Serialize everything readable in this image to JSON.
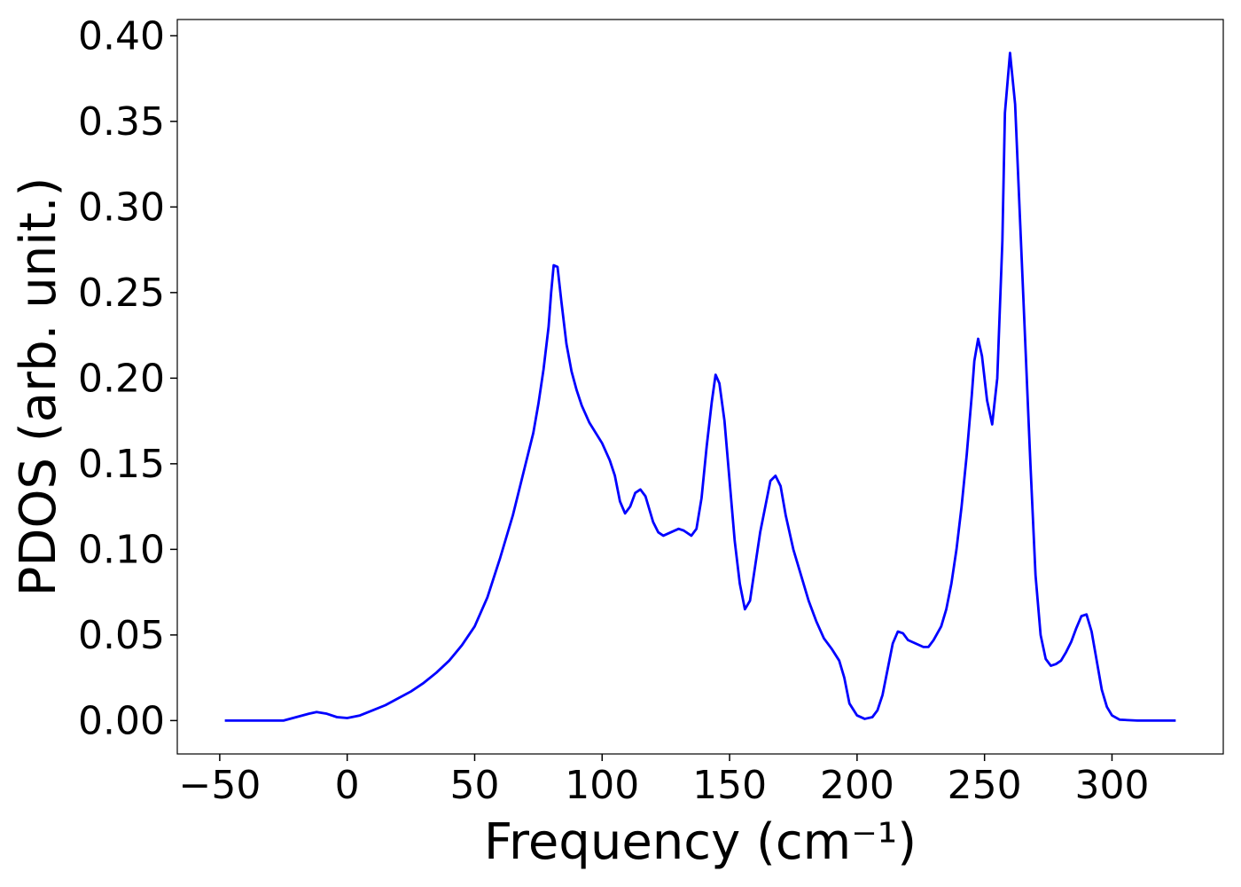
{
  "chart_data": {
    "type": "line",
    "xlabel": "Frequency (cm⁻¹)",
    "ylabel": "PDOS (arb. unit.)",
    "xlim": [
      -66.65,
      343.65
    ],
    "ylim": [
      -0.0195,
      0.4095
    ],
    "xticks": [
      {
        "value": -50,
        "label": "−50"
      },
      0,
      50,
      100,
      150,
      200,
      250,
      300
    ],
    "yticks": [
      {
        "value": 0,
        "label": "0.00"
      },
      {
        "value": 0.05,
        "label": "0.05"
      },
      {
        "value": 0.1,
        "label": "0.10"
      },
      {
        "value": 0.15,
        "label": "0.15"
      },
      {
        "value": 0.2,
        "label": "0.20"
      },
      {
        "value": 0.25,
        "label": "0.25"
      },
      {
        "value": 0.3,
        "label": "0.30"
      },
      {
        "value": 0.35,
        "label": "0.35"
      },
      {
        "value": 0.4,
        "label": "0.40"
      }
    ],
    "grid": false,
    "x": [
      -48,
      -25,
      -20,
      -15,
      -12,
      -8,
      -4,
      0,
      5,
      10,
      15,
      20,
      25,
      30,
      35,
      40,
      45,
      50,
      55,
      60,
      65,
      70,
      73,
      75,
      77,
      79,
      80,
      81,
      82.5,
      84,
      86,
      88,
      90,
      92,
      95,
      100,
      103,
      105,
      107,
      109,
      111,
      113,
      115,
      117,
      120,
      122,
      124,
      127,
      130,
      132,
      135,
      137,
      139,
      141,
      143,
      144.5,
      146,
      148,
      150,
      152,
      154,
      156,
      158,
      160,
      162,
      164,
      166,
      168,
      170,
      172,
      175,
      178,
      181,
      184,
      187,
      190,
      193,
      195,
      197,
      200,
      203,
      206,
      208,
      210,
      212,
      214,
      216,
      218,
      220,
      223,
      226,
      228,
      230,
      233,
      235,
      237,
      239,
      241,
      243,
      245,
      246,
      247.5,
      249,
      251,
      253,
      255,
      257,
      258,
      260,
      262,
      264,
      266,
      268,
      270,
      272,
      274,
      276,
      278,
      280,
      282,
      284,
      286,
      288,
      290,
      292,
      294,
      296,
      298,
      300,
      303,
      310,
      325
    ],
    "series": [
      {
        "color": "#0000ff",
        "values": [
          0,
          0,
          0.002,
          0.004,
          0.005,
          0.004,
          0.002,
          0.0015,
          0.003,
          0.006,
          0.009,
          0.013,
          0.017,
          0.022,
          0.028,
          0.035,
          0.044,
          0.055,
          0.072,
          0.095,
          0.12,
          0.15,
          0.168,
          0.185,
          0.205,
          0.23,
          0.25,
          0.266,
          0.265,
          0.245,
          0.22,
          0.204,
          0.193,
          0.184,
          0.174,
          0.162,
          0.152,
          0.143,
          0.128,
          0.121,
          0.125,
          0.133,
          0.135,
          0.131,
          0.116,
          0.11,
          0.108,
          0.11,
          0.112,
          0.111,
          0.108,
          0.112,
          0.13,
          0.16,
          0.186,
          0.202,
          0.197,
          0.175,
          0.14,
          0.105,
          0.08,
          0.065,
          0.07,
          0.09,
          0.11,
          0.125,
          0.14,
          0.143,
          0.137,
          0.12,
          0.1,
          0.085,
          0.07,
          0.058,
          0.048,
          0.042,
          0.035,
          0.025,
          0.01,
          0.003,
          0.001,
          0.002,
          0.006,
          0.015,
          0.03,
          0.045,
          0.052,
          0.051,
          0.047,
          0.045,
          0.043,
          0.043,
          0.047,
          0.055,
          0.065,
          0.08,
          0.1,
          0.125,
          0.155,
          0.19,
          0.21,
          0.223,
          0.213,
          0.187,
          0.173,
          0.2,
          0.28,
          0.355,
          0.39,
          0.36,
          0.29,
          0.22,
          0.15,
          0.085,
          0.05,
          0.036,
          0.032,
          0.033,
          0.035,
          0.04,
          0.046,
          0.054,
          0.061,
          0.062,
          0.052,
          0.035,
          0.018,
          0.008,
          0.003,
          0.0005,
          0,
          0
        ]
      }
    ]
  }
}
